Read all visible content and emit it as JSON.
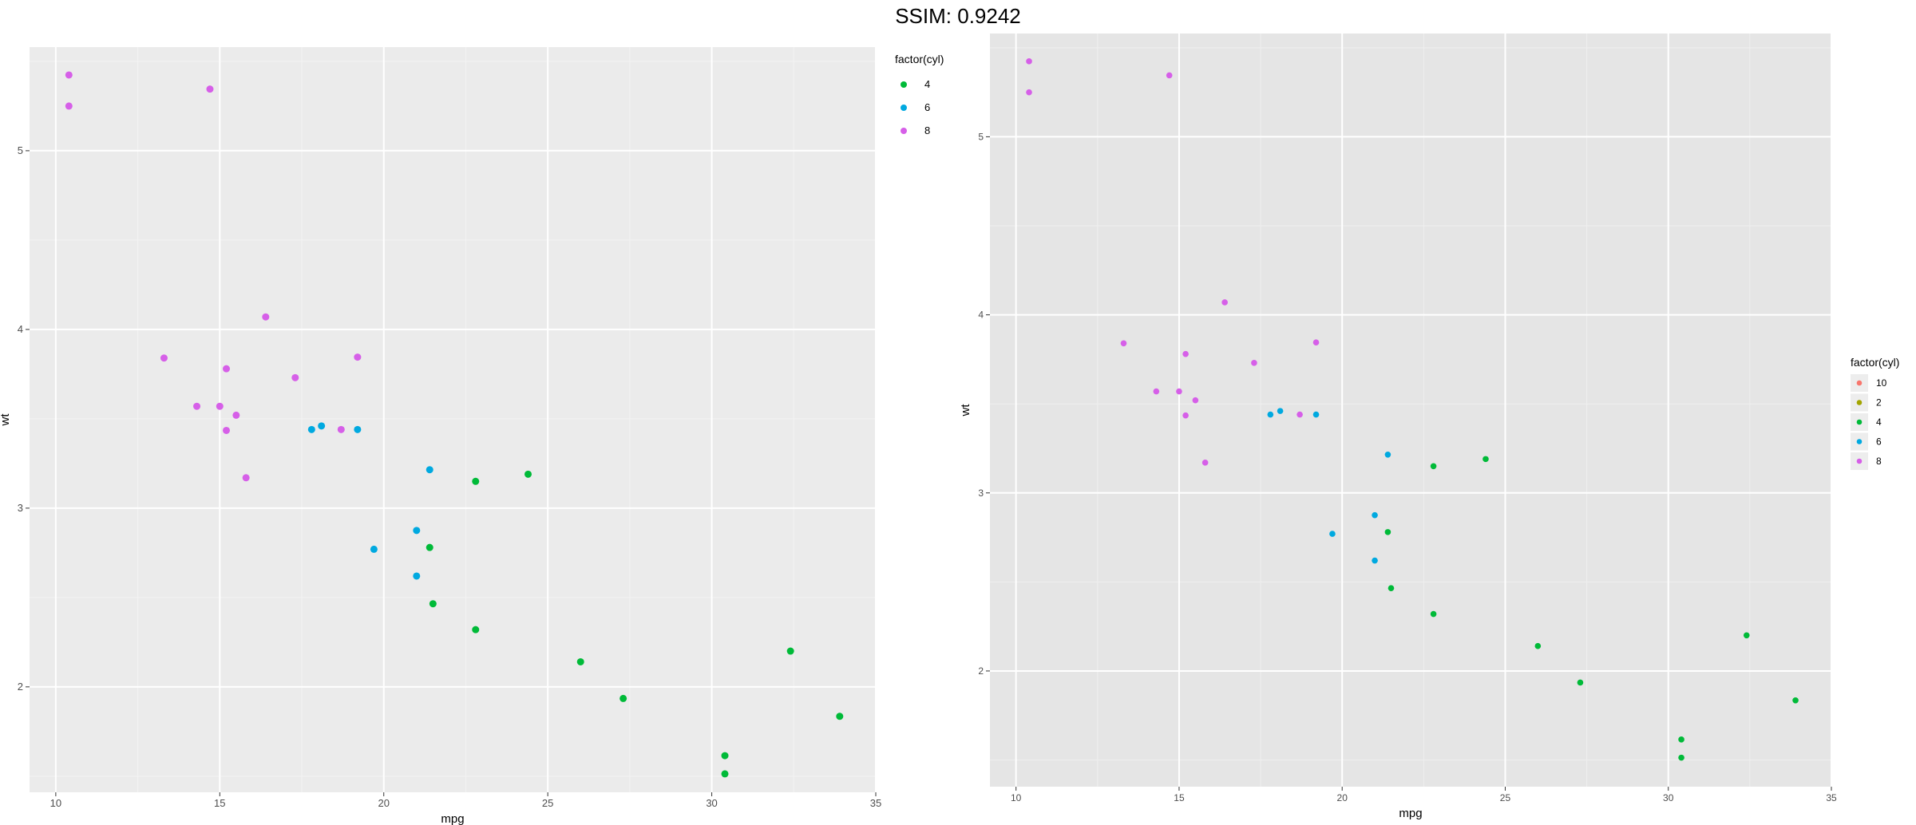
{
  "header": {
    "title": "SSIM: 0.9242"
  },
  "chart_data": [
    {
      "type": "scatter",
      "xlabel": "mpg",
      "ylabel": "wt",
      "xlim": [
        9.2,
        35.0
      ],
      "ylim": [
        1.41,
        5.58
      ],
      "xticks": [
        10,
        15,
        20,
        25,
        30,
        35
      ],
      "yticks": [
        2,
        3,
        4,
        5
      ],
      "grid": true,
      "legend": {
        "title": "factor(cyl)",
        "placement": "top-right",
        "entries": [
          {
            "label": "4",
            "color": "#00BA38"
          },
          {
            "label": "6",
            "color": "#00A9E0"
          },
          {
            "label": "8",
            "color": "#D65FE8"
          }
        ]
      },
      "series": [
        {
          "name": "4",
          "color": "#00BA38",
          "x": [
            22.8,
            24.4,
            22.8,
            32.4,
            30.4,
            33.9,
            21.5,
            27.3,
            26.0,
            30.4,
            21.4
          ],
          "y": [
            2.32,
            3.19,
            3.15,
            2.2,
            1.615,
            1.835,
            2.465,
            1.935,
            2.14,
            1.513,
            2.78
          ]
        },
        {
          "name": "6",
          "color": "#00A9E0",
          "x": [
            21.0,
            21.0,
            21.4,
            18.1,
            19.2,
            17.8,
            19.7
          ],
          "y": [
            2.62,
            2.875,
            3.215,
            3.46,
            3.44,
            3.44,
            2.77
          ]
        },
        {
          "name": "8",
          "color": "#D65FE8",
          "x": [
            18.7,
            14.3,
            16.4,
            17.3,
            15.2,
            10.4,
            10.4,
            14.7,
            15.5,
            15.2,
            13.3,
            19.2,
            15.8,
            15.0
          ],
          "y": [
            3.44,
            3.57,
            4.07,
            3.73,
            3.78,
            5.25,
            5.424,
            5.345,
            3.52,
            3.435,
            3.84,
            3.845,
            3.17,
            3.57
          ]
        }
      ]
    },
    {
      "type": "scatter",
      "xlabel": "mpg",
      "ylabel": "wt",
      "xlim": [
        9.2,
        35.0
      ],
      "ylim": [
        1.35,
        5.58
      ],
      "xticks": [
        10,
        15,
        20,
        25,
        30,
        35
      ],
      "yticks": [
        2,
        3,
        4,
        5
      ],
      "grid": true,
      "legend": {
        "title": "factor(cyl)",
        "placement": "right",
        "entries": [
          {
            "label": "10",
            "color": "#F8766D"
          },
          {
            "label": "2",
            "color": "#A3A500"
          },
          {
            "label": "4",
            "color": "#00BA38"
          },
          {
            "label": "6",
            "color": "#00A9E0"
          },
          {
            "label": "8",
            "color": "#D65FE8"
          }
        ]
      },
      "series": [
        {
          "name": "4",
          "color": "#00BA38",
          "x": [
            22.8,
            24.4,
            22.8,
            32.4,
            30.4,
            33.9,
            21.5,
            27.3,
            26.0,
            30.4,
            21.4
          ],
          "y": [
            2.32,
            3.19,
            3.15,
            2.2,
            1.615,
            1.835,
            2.465,
            1.935,
            2.14,
            1.513,
            2.78
          ]
        },
        {
          "name": "6",
          "color": "#00A9E0",
          "x": [
            21.0,
            21.0,
            21.4,
            18.1,
            19.2,
            17.8,
            19.7
          ],
          "y": [
            2.62,
            2.875,
            3.215,
            3.46,
            3.44,
            3.44,
            2.77
          ]
        },
        {
          "name": "8",
          "color": "#D65FE8",
          "x": [
            18.7,
            14.3,
            16.4,
            17.3,
            15.2,
            10.4,
            10.4,
            14.7,
            15.5,
            15.2,
            13.3,
            19.2,
            15.8,
            15.0
          ],
          "y": [
            3.44,
            3.57,
            4.07,
            3.73,
            3.78,
            5.25,
            5.424,
            5.345,
            3.52,
            3.435,
            3.84,
            3.845,
            3.17,
            3.57
          ]
        }
      ]
    }
  ]
}
